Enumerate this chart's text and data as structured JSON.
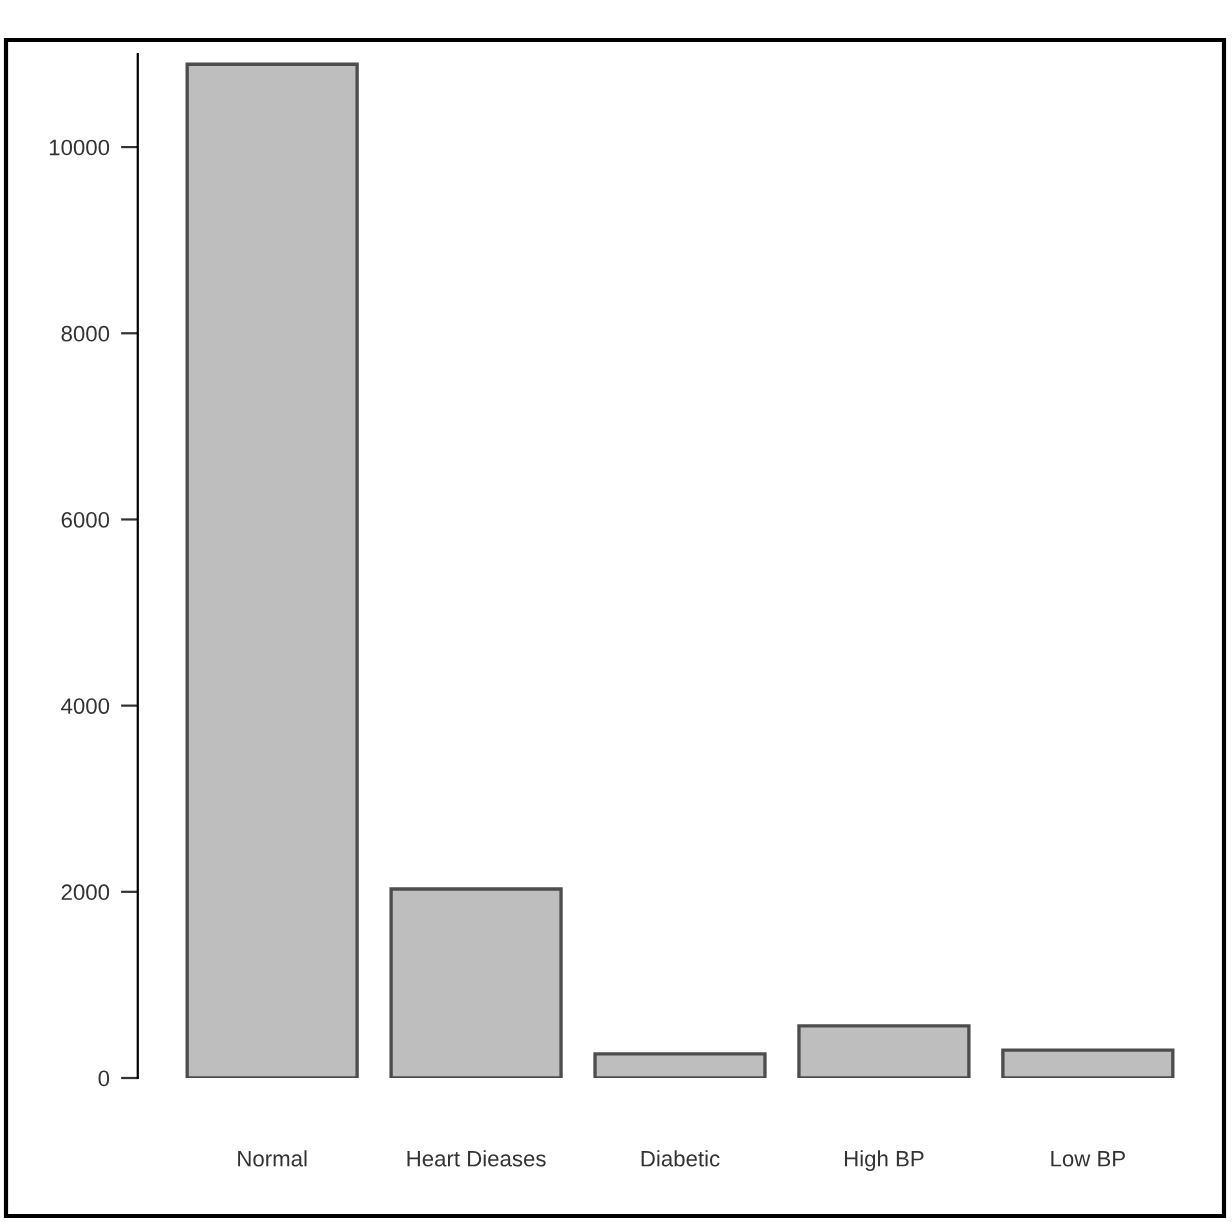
{
  "chart_data": {
    "type": "bar",
    "categories": [
      "Normal",
      "Heart Dieases",
      "Diabetic",
      "High BP",
      "Low BP"
    ],
    "values": [
      10890,
      2030,
      260,
      560,
      300
    ],
    "color": "#bebebe",
    "ylim": [
      0,
      11000
    ],
    "yticks": [
      0,
      2000,
      4000,
      6000,
      8000,
      10000
    ],
    "grid": false,
    "legend": false
  }
}
